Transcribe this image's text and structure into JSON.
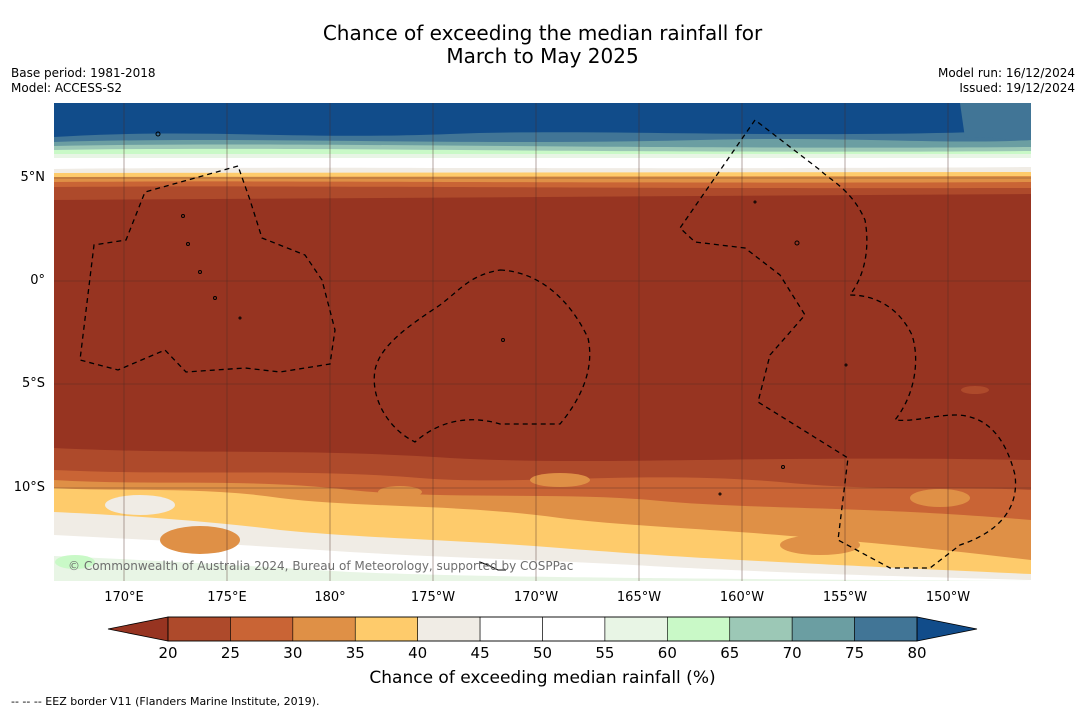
{
  "title_line1": "Chance of exceeding the median rainfall for",
  "title_line2": "March to May 2025",
  "base_period": "Base period: 1981-2018",
  "model": "Model: ACCESS-S2",
  "model_run": "Model run: 16/12/2024",
  "issued": "Issued: 19/12/2024",
  "lat_labels": [
    "5°N",
    "0°",
    "5°S",
    "10°S"
  ],
  "lon_labels": [
    "170°E",
    "175°E",
    "180°",
    "175°W",
    "170°W",
    "165°W",
    "160°W",
    "155°W",
    "150°W"
  ],
  "copyright": "© Commonwealth of Australia 2024, Bureau of Meteorology, supported by COSPPac",
  "colorbar": {
    "ticks": [
      "20",
      "25",
      "30",
      "35",
      "40",
      "45",
      "50",
      "55",
      "60",
      "65",
      "70",
      "75",
      "80"
    ],
    "label": "Chance of exceeding median rainfall (%)",
    "colors": [
      "#973421",
      "#ae4a2b",
      "#c96435",
      "#df9046",
      "#fecb6b",
      "#f0ece5",
      "#ffffff",
      "#ffffff",
      "#e8f5e5",
      "#c9f9c7",
      "#9cc8b6",
      "#6b9ea2",
      "#417596",
      "#114c8a"
    ]
  },
  "footnote": "-- -- -- EEZ border V11 (Flanders Marine Institute, 2019)."
}
